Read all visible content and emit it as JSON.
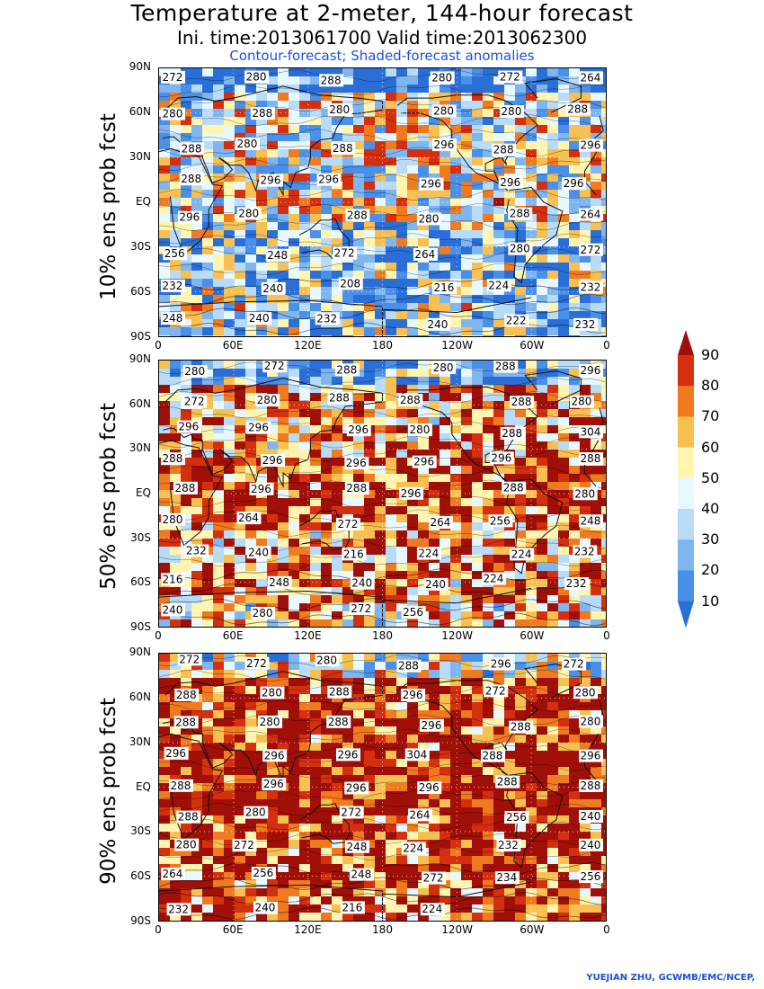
{
  "titles": {
    "main": "Temperature at 2-meter, 144-hour forecast",
    "times": "Ini. time:2013061700    Valid time:2013062300",
    "subtitle": "Contour-forecast; Shaded-forecast anomalies"
  },
  "credit": "YUEJIAN ZHU, GCWMB/EMC/NCEP,",
  "lat_ticks": [
    "90N",
    "60N",
    "30N",
    "EQ",
    "30S",
    "60S",
    "90S"
  ],
  "lon_ticks": [
    "0",
    "60E",
    "120E",
    "180",
    "120W",
    "60W",
    "0"
  ],
  "colorbar": {
    "labels": [
      "10",
      "20",
      "30",
      "40",
      "50",
      "60",
      "70",
      "80",
      "90"
    ],
    "colors": [
      "#2a6fd8",
      "#4a8fe8",
      "#7fb6f0",
      "#b8dcf8",
      "#e8f8ff",
      "#fff4b0",
      "#f8c050",
      "#f07a20",
      "#d43010",
      "#a01008"
    ]
  },
  "panels": [
    {
      "label": "10% ens prob fcst",
      "contour_labels": [
        "272",
        "280",
        "288",
        "280",
        "272",
        "264",
        "280",
        "288",
        "280",
        "280",
        "280",
        "288",
        "288",
        "280",
        "288",
        "296",
        "288",
        "296",
        "288",
        "296",
        "296",
        "296",
        "296",
        "296",
        "296",
        "280",
        "288",
        "280",
        "288",
        "264",
        "256",
        "248",
        "272",
        "264",
        "280",
        "272",
        "232",
        "240",
        "208",
        "216",
        "224",
        "232",
        "248",
        "240",
        "232",
        "240",
        "222",
        "232"
      ]
    },
    {
      "label": "50% ens prob fcst",
      "contour_labels": [
        "280",
        "272",
        "288",
        "280",
        "288",
        "296",
        "272",
        "280",
        "288",
        "288",
        "288",
        "280",
        "296",
        "296",
        "296",
        "280",
        "288",
        "304",
        "288",
        "296",
        "296",
        "296",
        "296",
        "288",
        "288",
        "296",
        "288",
        "296",
        "288",
        "280",
        "280",
        "264",
        "272",
        "264",
        "256",
        "248",
        "232",
        "240",
        "216",
        "224",
        "224",
        "232",
        "216",
        "248",
        "240",
        "240",
        "224",
        "232",
        "240",
        "280",
        "272",
        "256"
      ]
    },
    {
      "label": "90% ens prob fcst",
      "contour_labels": [
        "272",
        "272",
        "280",
        "288",
        "296",
        "272",
        "288",
        "280",
        "288",
        "296",
        "272",
        "280",
        "288",
        "280",
        "288",
        "296",
        "288",
        "280",
        "296",
        "296",
        "296",
        "304",
        "288",
        "296",
        "288",
        "296",
        "296",
        "296",
        "288",
        "288",
        "288",
        "280",
        "272",
        "264",
        "256",
        "240",
        "280",
        "272",
        "248",
        "224",
        "232",
        "240",
        "264",
        "256",
        "248",
        "272",
        "234",
        "256",
        "232",
        "240",
        "216",
        "224"
      ]
    }
  ]
}
